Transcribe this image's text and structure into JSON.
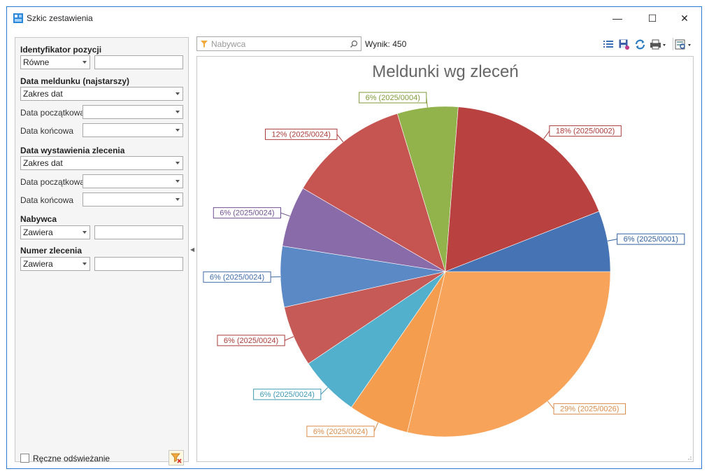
{
  "window": {
    "title": "Szkic zestawienia",
    "minimize_label": "—",
    "maximize_label": "☐",
    "close_label": "✕"
  },
  "filters": {
    "identyfikator": {
      "title": "Identyfikator pozycji",
      "operator": "Równe",
      "value": ""
    },
    "data_meldunku": {
      "title": "Data meldunku (najstarszy)",
      "range": "Zakres dat",
      "start_label": "Data początkowa",
      "end_label": "Data końcowa"
    },
    "data_wystawienia": {
      "title": "Data wystawienia zlecenia",
      "range": "Zakres dat",
      "start_label": "Data początkowa",
      "end_label": "Data końcowa"
    },
    "nabywca": {
      "title": "Nabywca",
      "operator": "Zawiera",
      "value": ""
    },
    "numer_zlecenia": {
      "title": "Numer zlecenia",
      "operator": "Zawiera",
      "value": ""
    },
    "manual_refresh_label": "Ręczne odświeżanie"
  },
  "search": {
    "placeholder": "Nabywca"
  },
  "result": {
    "text": "Wynik: 450"
  },
  "icons": {
    "list": "list-icon",
    "save": "save-icon",
    "refresh": "refresh-icon",
    "print": "print-icon",
    "preview": "preview-icon",
    "filter": "filter-icon",
    "clear_filter": "clear-filter-icon"
  },
  "chart_data": {
    "type": "pie",
    "title": "Meldunki wg zleceń",
    "slices": [
      {
        "label": "29% (2025/0026)",
        "value": 29,
        "color": "#f7a35a"
      },
      {
        "label": "6% (2025/0024)",
        "value": 6,
        "color": "#f59d4f"
      },
      {
        "label": "6% (2025/0024)",
        "value": 6,
        "color": "#53b0cc"
      },
      {
        "label": "6% (2025/0024)",
        "value": 6,
        "color": "#c55a57"
      },
      {
        "label": "6% (2025/0024)",
        "value": 6,
        "color": "#5b89c6"
      },
      {
        "label": "6% (2025/0024)",
        "value": 6,
        "color": "#8a6ba9"
      },
      {
        "label": "12% (2025/0024)",
        "value": 12,
        "color": "#c65552"
      },
      {
        "label": "6% (2025/0004)",
        "value": 6,
        "color": "#92b34c"
      },
      {
        "label": "18% (2025/0002)",
        "value": 18,
        "color": "#b94241"
      },
      {
        "label": "6% (2025/0001)",
        "value": 6,
        "color": "#4573b3"
      }
    ],
    "label_colors": [
      "#d98c4a",
      "#d98c4a",
      "#3d99b3",
      "#a93c3a",
      "#3f6aa6",
      "#6f5290",
      "#a93c3a",
      "#7f9a3a",
      "#a93c3a",
      "#2f5f9e"
    ]
  }
}
